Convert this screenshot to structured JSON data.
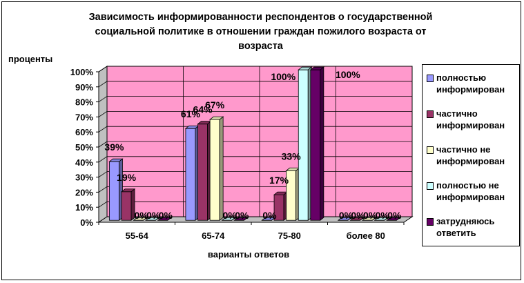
{
  "chart_data": {
    "type": "bar",
    "title_lines": [
      "Зависимость информированности респондентов о государственной",
      "социальной политике в отношении граждан пожилого возраста от",
      "возраста"
    ],
    "ylabel": "проценты",
    "xlabel": "варианты ответов",
    "categories": [
      "55-64",
      "65-74",
      "75-80",
      "более 80"
    ],
    "ylim": [
      0,
      100
    ],
    "y_ticks": [
      "0%",
      "10%",
      "20%",
      "30%",
      "40%",
      "50%",
      "60%",
      "70%",
      "80%",
      "90%",
      "100%"
    ],
    "series": [
      {
        "name": "полностью\nинформирован",
        "color": "#9999ff",
        "values": [
          39,
          61,
          0,
          0
        ]
      },
      {
        "name": "частично\nинформирован",
        "color": "#993366",
        "values": [
          19,
          64,
          17,
          0
        ]
      },
      {
        "name": "частично не\nинформирован",
        "color": "#ffffcc",
        "values": [
          0,
          67,
          33,
          0
        ]
      },
      {
        "name": "полностью не\nинформирован",
        "color": "#ccffff",
        "values": [
          0,
          0,
          100,
          0
        ]
      },
      {
        "name": "затрудняюсь\nответить",
        "color": "#660066",
        "values": [
          0,
          0,
          100,
          0
        ]
      }
    ],
    "data_labels": [
      [
        "39%",
        "61%",
        "0%",
        "0%"
      ],
      [
        "19%",
        "64%",
        "17%",
        "0%"
      ],
      [
        "0%",
        "67%",
        "33%",
        "0%"
      ],
      [
        "0%",
        "0%",
        "100%",
        "0%"
      ],
      [
        "0%",
        "0%",
        "100%",
        "0%"
      ]
    ],
    "plot_background": "#ff99cc",
    "grid": true,
    "legend_position": "right"
  }
}
